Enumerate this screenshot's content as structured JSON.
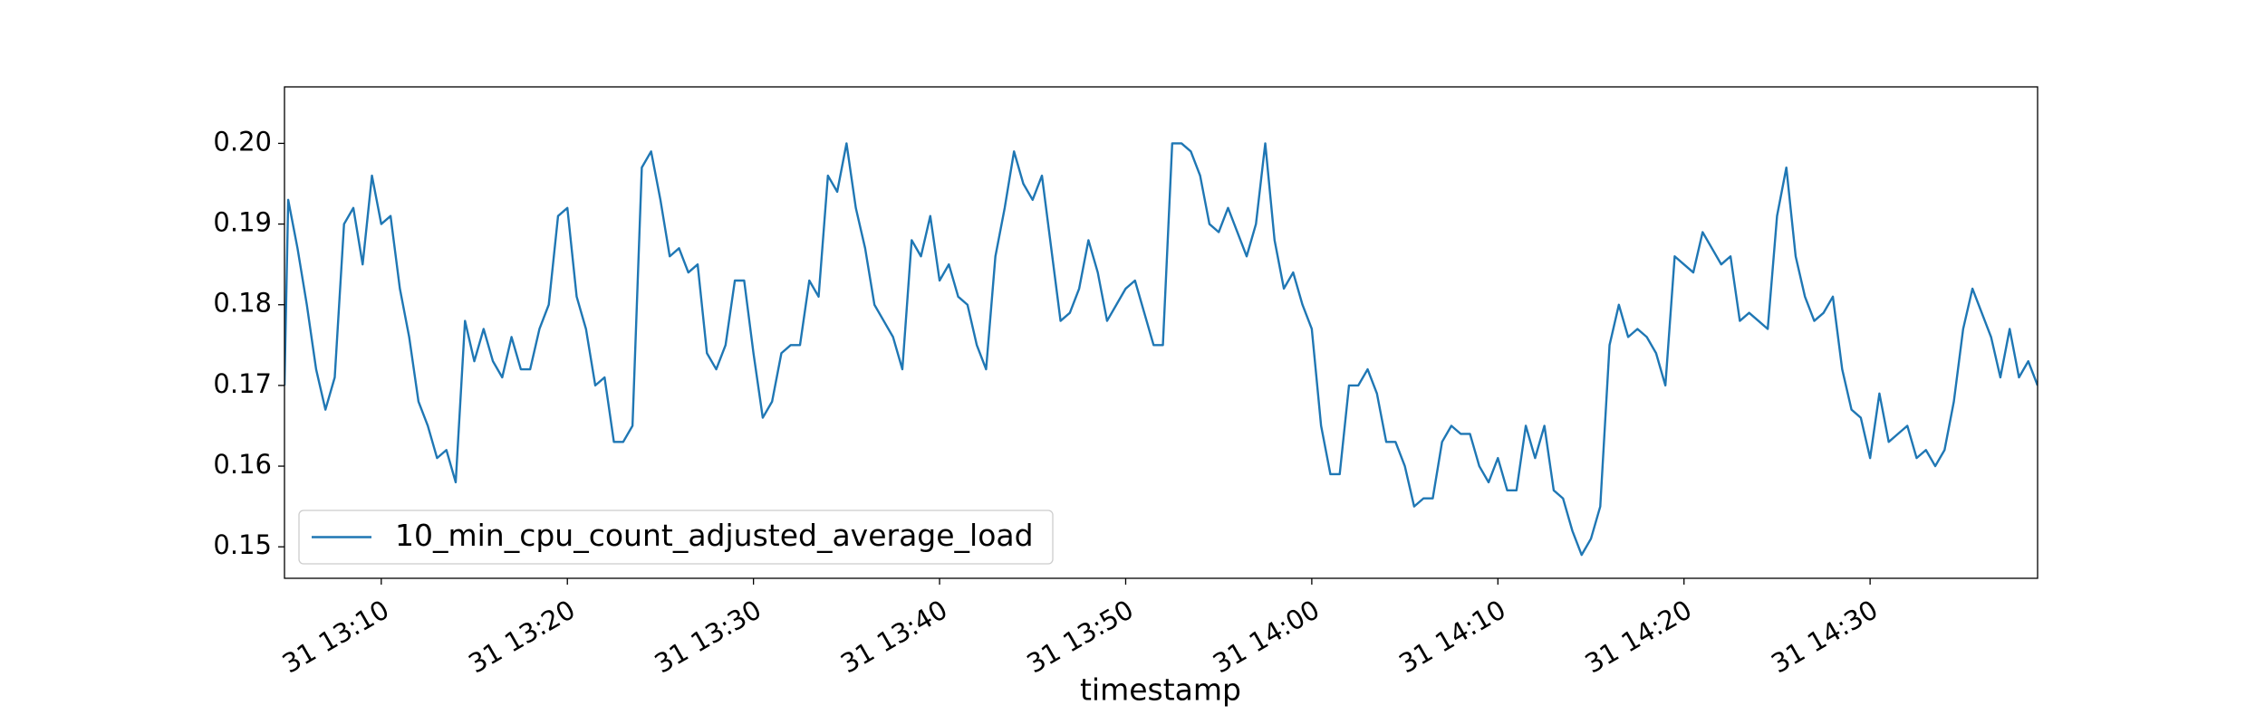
{
  "chart_data": {
    "type": "line",
    "xlabel": "timestamp",
    "x": [
      "31 13:04:48",
      "31 13:05:00",
      "31 13:05:30",
      "31 13:06:00",
      "31 13:06:30",
      "31 13:07:00",
      "31 13:07:30",
      "31 13:08:00",
      "31 13:08:30",
      "31 13:09:00",
      "31 13:09:30",
      "31 13:10:00",
      "31 13:10:30",
      "31 13:11:00",
      "31 13:11:30",
      "31 13:12:00",
      "31 13:12:30",
      "31 13:13:00",
      "31 13:13:30",
      "31 13:14:00",
      "31 13:14:30",
      "31 13:15:00",
      "31 13:15:30",
      "31 13:16:00",
      "31 13:16:30",
      "31 13:17:00",
      "31 13:17:30",
      "31 13:18:00",
      "31 13:18:30",
      "31 13:19:00",
      "31 13:19:30",
      "31 13:20:00",
      "31 13:20:30",
      "31 13:21:00",
      "31 13:21:30",
      "31 13:22:00",
      "31 13:22:30",
      "31 13:23:00",
      "31 13:23:30",
      "31 13:24:00",
      "31 13:24:30",
      "31 13:25:00",
      "31 13:25:30",
      "31 13:26:00",
      "31 13:26:30",
      "31 13:27:00",
      "31 13:27:30",
      "31 13:28:00",
      "31 13:28:30",
      "31 13:29:00",
      "31 13:29:30",
      "31 13:30:00",
      "31 13:30:30",
      "31 13:31:00",
      "31 13:31:30",
      "31 13:32:00",
      "31 13:32:30",
      "31 13:33:00",
      "31 13:33:30",
      "31 13:34:00",
      "31 13:34:30",
      "31 13:35:00",
      "31 13:35:30",
      "31 13:36:00",
      "31 13:36:30",
      "31 13:37:00",
      "31 13:37:30",
      "31 13:38:00",
      "31 13:38:30",
      "31 13:39:00",
      "31 13:39:30",
      "31 13:40:00",
      "31 13:40:30",
      "31 13:41:00",
      "31 13:41:30",
      "31 13:42:00",
      "31 13:42:30",
      "31 13:43:00",
      "31 13:43:30",
      "31 13:44:00",
      "31 13:44:30",
      "31 13:45:00",
      "31 13:45:30",
      "31 13:46:00",
      "31 13:46:30",
      "31 13:47:00",
      "31 13:47:30",
      "31 13:48:00",
      "31 13:48:30",
      "31 13:49:00",
      "31 13:49:30",
      "31 13:50:00",
      "31 13:50:30",
      "31 13:51:00",
      "31 13:51:30",
      "31 13:52:00",
      "31 13:52:30",
      "31 13:53:00",
      "31 13:53:30",
      "31 13:54:00",
      "31 13:54:30",
      "31 13:55:00",
      "31 13:55:30",
      "31 13:56:00",
      "31 13:56:30",
      "31 13:57:00",
      "31 13:57:30",
      "31 13:58:00",
      "31 13:58:30",
      "31 13:59:00",
      "31 13:59:30",
      "31 14:00:00",
      "31 14:00:30",
      "31 14:01:00",
      "31 14:01:30",
      "31 14:02:00",
      "31 14:02:30",
      "31 14:03:00",
      "31 14:03:30",
      "31 14:04:00",
      "31 14:04:30",
      "31 14:05:00",
      "31 14:05:30",
      "31 14:06:00",
      "31 14:06:30",
      "31 14:07:00",
      "31 14:07:30",
      "31 14:08:00",
      "31 14:08:30",
      "31 14:09:00",
      "31 14:09:30",
      "31 14:10:00",
      "31 14:10:30",
      "31 14:11:00",
      "31 14:11:30",
      "31 14:12:00",
      "31 14:12:30",
      "31 14:13:00",
      "31 14:13:30",
      "31 14:14:00",
      "31 14:14:30",
      "31 14:15:00",
      "31 14:15:30",
      "31 14:16:00",
      "31 14:16:30",
      "31 14:17:00",
      "31 14:17:30",
      "31 14:18:00",
      "31 14:18:30",
      "31 14:19:00",
      "31 14:19:30",
      "31 14:20:00",
      "31 14:20:30",
      "31 14:21:00",
      "31 14:21:30",
      "31 14:22:00",
      "31 14:22:30",
      "31 14:23:00",
      "31 14:23:30",
      "31 14:24:00",
      "31 14:24:30",
      "31 14:25:00",
      "31 14:25:30",
      "31 14:26:00",
      "31 14:26:30",
      "31 14:27:00",
      "31 14:27:30",
      "31 14:28:00",
      "31 14:28:30",
      "31 14:29:00",
      "31 14:29:30",
      "31 14:30:00",
      "31 14:30:30",
      "31 14:31:00",
      "31 14:31:30",
      "31 14:32:00",
      "31 14:32:30",
      "31 14:33:00",
      "31 14:33:30",
      "31 14:34:00",
      "31 14:34:30",
      "31 14:35:00",
      "31 14:35:30",
      "31 14:36:00",
      "31 14:36:30",
      "31 14:37:00",
      "31 14:37:30",
      "31 14:38:00",
      "31 14:38:30",
      "31 14:39:00"
    ],
    "series": [
      {
        "name": "10_min_cpu_count_adjusted_average_load",
        "color": "#1f77b4",
        "values": [
          0.17,
          0.193,
          0.187,
          0.18,
          0.172,
          0.167,
          0.171,
          0.19,
          0.192,
          0.185,
          0.196,
          0.19,
          0.191,
          0.182,
          0.176,
          0.168,
          0.165,
          0.161,
          0.162,
          0.158,
          0.178,
          0.173,
          0.177,
          0.173,
          0.171,
          0.176,
          0.172,
          0.172,
          0.177,
          0.18,
          0.191,
          0.192,
          0.181,
          0.177,
          0.17,
          0.171,
          0.163,
          0.163,
          0.165,
          0.197,
          0.199,
          0.193,
          0.186,
          0.187,
          0.184,
          0.185,
          0.174,
          0.172,
          0.175,
          0.183,
          0.183,
          0.174,
          0.166,
          0.168,
          0.174,
          0.175,
          0.175,
          0.183,
          0.181,
          0.196,
          0.194,
          0.2,
          0.192,
          0.187,
          0.18,
          0.178,
          0.176,
          0.172,
          0.188,
          0.186,
          0.191,
          0.183,
          0.185,
          0.181,
          0.18,
          0.175,
          0.172,
          0.186,
          0.192,
          0.199,
          0.195,
          0.193,
          0.196,
          0.187,
          0.178,
          0.179,
          0.182,
          0.188,
          0.184,
          0.178,
          0.18,
          0.182,
          0.183,
          0.179,
          0.175,
          0.175,
          0.2,
          0.2,
          0.199,
          0.196,
          0.19,
          0.189,
          0.192,
          0.189,
          0.186,
          0.19,
          0.2,
          0.188,
          0.182,
          0.184,
          0.18,
          0.177,
          0.165,
          0.159,
          0.159,
          0.17,
          0.17,
          0.172,
          0.169,
          0.163,
          0.163,
          0.16,
          0.155,
          0.156,
          0.156,
          0.163,
          0.165,
          0.164,
          0.164,
          0.16,
          0.158,
          0.161,
          0.157,
          0.157,
          0.165,
          0.161,
          0.165,
          0.157,
          0.156,
          0.152,
          0.149,
          0.151,
          0.155,
          0.175,
          0.18,
          0.176,
          0.177,
          0.176,
          0.174,
          0.17,
          0.186,
          0.185,
          0.184,
          0.189,
          0.187,
          0.185,
          0.186,
          0.178,
          0.179,
          0.178,
          0.177,
          0.191,
          0.197,
          0.186,
          0.181,
          0.178,
          0.179,
          0.181,
          0.172,
          0.167,
          0.166,
          0.161,
          0.169,
          0.163,
          0.164,
          0.165,
          0.161,
          0.162,
          0.16,
          0.162,
          0.168,
          0.177,
          0.182,
          0.179,
          0.176,
          0.171,
          0.177,
          0.171,
          0.173,
          0.17
        ]
      }
    ],
    "xlim": [
      "31 13:04:48",
      "31 14:39:00"
    ],
    "xticks": [
      "31 13:10",
      "31 13:20",
      "31 13:30",
      "31 13:40",
      "31 13:50",
      "31 14:00",
      "31 14:10",
      "31 14:20",
      "31 14:30"
    ],
    "ylim": [
      0.1461,
      0.207
    ],
    "yticks": [
      0.15,
      0.16,
      0.17,
      0.18,
      0.19,
      {
        "value": 0.2,
        "label": "0.20"
      }
    ],
    "legend": "lower left"
  }
}
